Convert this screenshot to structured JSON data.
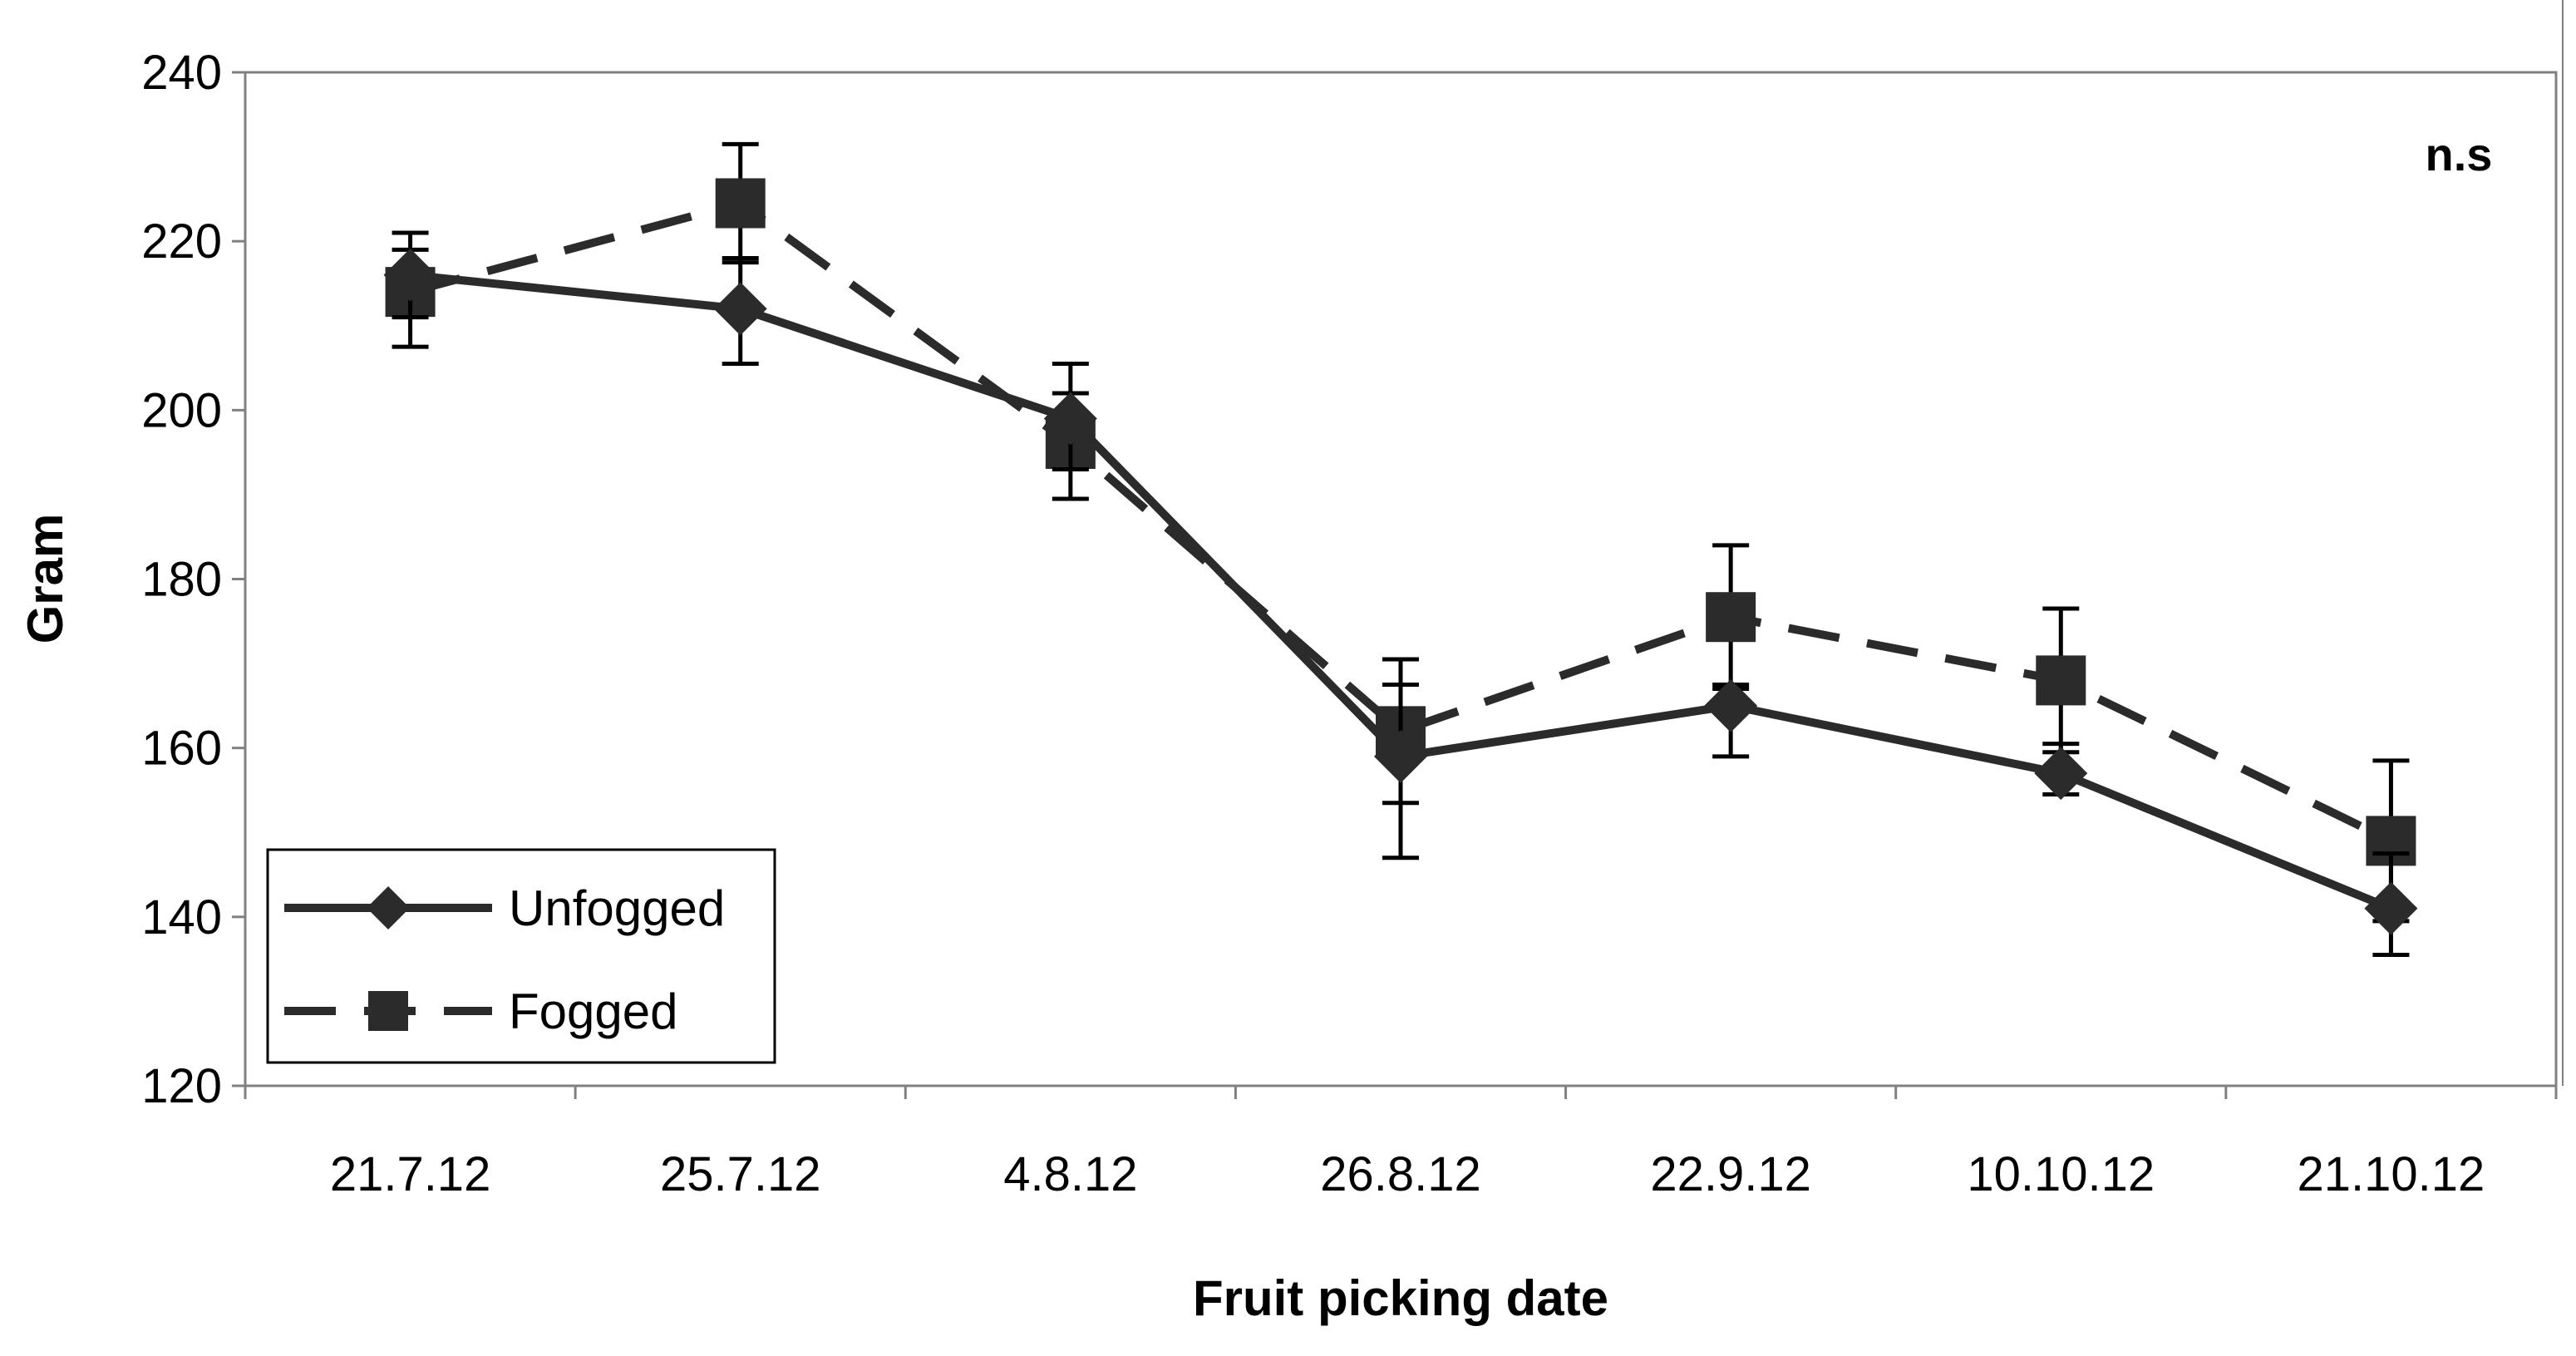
{
  "chart_data": {
    "type": "line",
    "title": "",
    "xlabel": "Fruit picking date",
    "ylabel": "Gram",
    "categories": [
      "21.7.12",
      "25.7.12",
      "4.8.12",
      "26.8.12",
      "22.9.12",
      "10.10.12",
      "21.10.12"
    ],
    "ylim": [
      120,
      240
    ],
    "yticks": [
      120,
      140,
      160,
      180,
      200,
      220,
      240
    ],
    "ytick_labels": [
      "120",
      "140",
      "160",
      "180",
      "200",
      "220",
      "240"
    ],
    "grid": false,
    "legend_position": "bottom-left",
    "annotation": "n.s",
    "series": [
      {
        "name": "Unfogged",
        "marker": "diamond",
        "line_style": "solid",
        "values": [
          216,
          212,
          199,
          159,
          165,
          157,
          141
        ],
        "error_upper": [
          221,
          218,
          205.5,
          167.5,
          167,
          160.5,
          147.5
        ],
        "error_lower": [
          211,
          205.5,
          193,
          147,
          159,
          154.5,
          135.5
        ]
      },
      {
        "name": "Fogged",
        "marker": "square",
        "line_style": "dashed",
        "values": [
          214,
          224.5,
          196,
          162,
          175.5,
          168,
          149
        ],
        "error_upper": [
          219,
          231.5,
          202,
          170.5,
          184,
          176.5,
          158.5
        ],
        "error_lower": [
          207.5,
          217.5,
          189.5,
          153.5,
          167.5,
          159.5,
          139.5
        ]
      }
    ],
    "colors": {
      "line": "#2b2b2b",
      "axis": "#808080",
      "text": "#000000"
    }
  }
}
